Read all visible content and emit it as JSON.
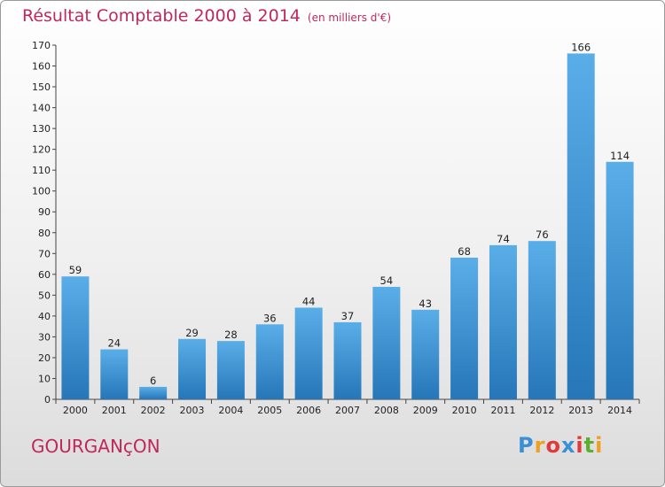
{
  "header": {
    "title": "Résultat Comptable 2000 à 2014",
    "subtitle": "(en milliers d'€)"
  },
  "footer": {
    "commune": "GOURGANçON",
    "logo": {
      "letters": [
        "P",
        "r",
        "o",
        "x",
        "i",
        "t",
        "i"
      ],
      "colors": [
        "#3a8fd6",
        "#f0a020",
        "#e03a3a",
        "#3a8fd6",
        "#e03a3a",
        "#5ab02c",
        "#f0a020"
      ]
    }
  },
  "colors": {
    "title": "#c0285a",
    "bar_top": "#5aaee8",
    "bar_bottom": "#2676b8"
  },
  "chart_data": {
    "type": "bar",
    "categories": [
      "2000",
      "2001",
      "2002",
      "2003",
      "2004",
      "2005",
      "2006",
      "2007",
      "2008",
      "2009",
      "2010",
      "2011",
      "2012",
      "2013",
      "2014"
    ],
    "values": [
      59,
      24,
      6,
      29,
      28,
      36,
      44,
      37,
      54,
      43,
      68,
      74,
      76,
      166,
      114
    ],
    "ylim": [
      0,
      170
    ],
    "yticks": [
      0,
      10,
      20,
      30,
      40,
      50,
      60,
      70,
      80,
      90,
      100,
      110,
      120,
      130,
      140,
      150,
      160,
      170
    ],
    "grid": false,
    "data_labels": true
  }
}
